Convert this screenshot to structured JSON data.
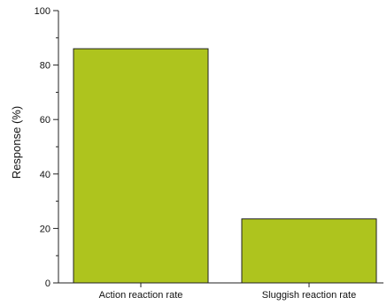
{
  "chart_data": {
    "type": "bar",
    "categories": [
      "Action reaction rate",
      "Sluggish reaction rate"
    ],
    "values": [
      86,
      23.5
    ],
    "title": "",
    "xlabel": "",
    "ylabel": "Response (%)",
    "ylim": [
      0,
      100
    ],
    "y_major_ticks": [
      0,
      20,
      40,
      60,
      80,
      100
    ],
    "y_minor_step": 10,
    "grid": false,
    "legend": "none",
    "colors": {
      "bar_fill": "#aec41e",
      "bar_stroke": "#222222",
      "axis": "#222222"
    }
  }
}
